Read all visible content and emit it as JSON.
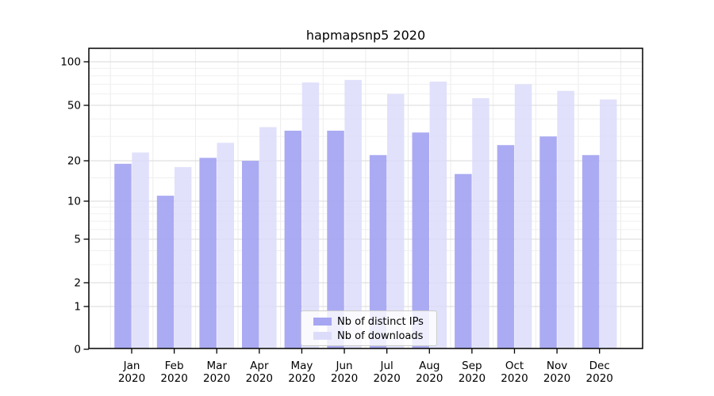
{
  "chart_data": {
    "type": "bar",
    "title": "hapmapsnp5 2020",
    "categories": [
      "Jan",
      "Feb",
      "Mar",
      "Apr",
      "May",
      "Jun",
      "Jul",
      "Aug",
      "Sep",
      "Oct",
      "Nov",
      "Dec"
    ],
    "category_year": "2020",
    "series": [
      {
        "name": "Nb of distinct IPs",
        "color": "#a6a6f2",
        "values": [
          19,
          11,
          21,
          20,
          33,
          33,
          22,
          32,
          16,
          26,
          30,
          22
        ]
      },
      {
        "name": "Nb of downloads",
        "color": "#dcdcfa",
        "values": [
          23,
          18,
          27,
          35,
          72,
          75,
          60,
          73,
          56,
          70,
          63,
          55
        ]
      }
    ],
    "xlabel": "",
    "ylabel": "",
    "y_scale": "log1p",
    "y_ticks": [
      0,
      1,
      2,
      5,
      10,
      20,
      50,
      100
    ],
    "y_minor_gridlines": [
      3,
      4,
      6,
      7,
      8,
      9,
      15,
      30,
      40,
      60,
      70,
      80,
      90
    ],
    "ylim": [
      0,
      125
    ],
    "grid": true,
    "legend_position": "bottom-center"
  },
  "colors": {
    "background": "#ffffff",
    "bar_distinct_ips": "#a6a6f2",
    "bar_downloads": "#dcdcfa",
    "grid_major": "#d9d9d9",
    "grid_minor": "#f0f0f0",
    "grid_vertical": "#ececec",
    "axis_frame": "#000000",
    "legend_border": "#cccccc",
    "text": "#000000"
  }
}
